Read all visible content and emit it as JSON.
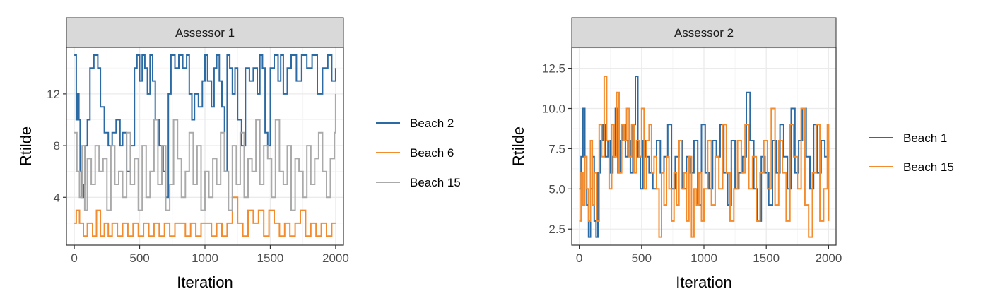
{
  "colors": {
    "blue": "#2c6aa3",
    "orange": "#f28c2e",
    "gray": "#aaaaaa",
    "strip": "#d9d9d9",
    "grid_major": "#ebebeb",
    "grid_minor": "#f5f5f5",
    "frame": "#333333"
  },
  "chart_data": [
    {
      "type": "line",
      "title": "Assessor 1",
      "xlabel": "Iteration",
      "ylabel": "Rtilde",
      "xlim": [
        -60,
        2060
      ],
      "ylim": [
        0.3,
        15.6
      ],
      "xticks": [
        0,
        500,
        1000,
        1500,
        2000
      ],
      "xtick_labels": [
        "0",
        "500",
        "1000",
        "1500",
        "2000"
      ],
      "yticks": [
        4,
        8,
        12
      ],
      "ytick_labels": [
        "4",
        "8",
        "12"
      ],
      "grid": true,
      "legend_position": "right",
      "series": [
        {
          "name": "Beach 2",
          "color": "#2c6aa3",
          "step": true,
          "x": [
            0,
            15,
            25,
            35,
            45,
            55,
            70,
            85,
            100,
            120,
            150,
            180,
            200,
            230,
            260,
            290,
            320,
            350,
            370,
            400,
            430,
            460,
            480,
            500,
            520,
            540,
            560,
            580,
            600,
            620,
            650,
            680,
            700,
            720,
            740,
            770,
            800,
            830,
            860,
            880,
            900,
            920,
            950,
            980,
            1000,
            1020,
            1050,
            1070,
            1090,
            1110,
            1130,
            1150,
            1170,
            1190,
            1210,
            1230,
            1250,
            1280,
            1310,
            1340,
            1370,
            1400,
            1420,
            1440,
            1460,
            1480,
            1500,
            1530,
            1560,
            1580,
            1600,
            1630,
            1660,
            1700,
            1740,
            1780,
            1820,
            1860,
            1900,
            1940,
            1970,
            2000
          ],
          "values": [
            15,
            10,
            12,
            10,
            6,
            4,
            5,
            8,
            10,
            14,
            15,
            14,
            11,
            9,
            8,
            9,
            10,
            8,
            9,
            6,
            8,
            14,
            15,
            13,
            15,
            14,
            12,
            15,
            13,
            10,
            8,
            6,
            4,
            12,
            15,
            14,
            15,
            14,
            15,
            12,
            10,
            12,
            11,
            13,
            15,
            13,
            11,
            14,
            15,
            13,
            11,
            6,
            15,
            14,
            12,
            14,
            10,
            8,
            14,
            13,
            14,
            12,
            15,
            14,
            9,
            8,
            14,
            15,
            13,
            15,
            12,
            14,
            15,
            13,
            15,
            14,
            15,
            12,
            14,
            15,
            13,
            14
          ]
        },
        {
          "name": "Beach 6",
          "color": "#f28c2e",
          "step": true,
          "x": [
            0,
            15,
            40,
            70,
            100,
            140,
            170,
            200,
            230,
            260,
            290,
            330,
            370,
            410,
            450,
            490,
            530,
            570,
            610,
            650,
            690,
            730,
            770,
            810,
            850,
            890,
            930,
            970,
            1010,
            1050,
            1090,
            1130,
            1170,
            1210,
            1250,
            1290,
            1330,
            1370,
            1410,
            1450,
            1490,
            1530,
            1570,
            1610,
            1650,
            1690,
            1730,
            1770,
            1810,
            1850,
            1890,
            1930,
            1970,
            2000
          ],
          "values": [
            2,
            3,
            2,
            1,
            2,
            1,
            3,
            1,
            2,
            1,
            2,
            1,
            2,
            1,
            2,
            1,
            2,
            1,
            2,
            1,
            2,
            1,
            2,
            2,
            1,
            2,
            1,
            2,
            2,
            1,
            2,
            1,
            2,
            4,
            2,
            1,
            3,
            2,
            3,
            1,
            3,
            2,
            1,
            2,
            1,
            2,
            3,
            1,
            2,
            1,
            2,
            1,
            2,
            2
          ]
        },
        {
          "name": "Beach 15",
          "color": "#aaaaaa",
          "step": true,
          "x": [
            0,
            20,
            40,
            60,
            80,
            100,
            130,
            160,
            190,
            220,
            250,
            280,
            310,
            340,
            370,
            400,
            430,
            460,
            490,
            520,
            550,
            580,
            610,
            640,
            670,
            700,
            730,
            760,
            790,
            820,
            850,
            880,
            910,
            940,
            970,
            1000,
            1030,
            1060,
            1090,
            1120,
            1150,
            1180,
            1210,
            1240,
            1270,
            1300,
            1330,
            1360,
            1390,
            1420,
            1450,
            1480,
            1510,
            1540,
            1570,
            1600,
            1630,
            1660,
            1690,
            1720,
            1750,
            1780,
            1810,
            1840,
            1870,
            1900,
            1930,
            1960,
            1990,
            2000
          ],
          "values": [
            9,
            6,
            4,
            8,
            3,
            7,
            5,
            8,
            6,
            7,
            3,
            8,
            5,
            6,
            4,
            9,
            5,
            7,
            3,
            8,
            4,
            6,
            10,
            5,
            8,
            3,
            5,
            10,
            7,
            4,
            6,
            9,
            5,
            8,
            3,
            6,
            4,
            7,
            5,
            9,
            6,
            3,
            8,
            5,
            9,
            4,
            7,
            6,
            10,
            5,
            8,
            7,
            4,
            10,
            6,
            5,
            8,
            3,
            7,
            6,
            4,
            8,
            5,
            7,
            9,
            6,
            4,
            7,
            9,
            12
          ]
        }
      ]
    },
    {
      "type": "line",
      "title": "Assessor 2",
      "xlabel": "Iteration",
      "ylabel": "Rtilde",
      "xlim": [
        -60,
        2060
      ],
      "ylim": [
        1.5,
        13.8
      ],
      "xticks": [
        0,
        500,
        1000,
        1500,
        2000
      ],
      "xtick_labels": [
        "0",
        "500",
        "1000",
        "1500",
        "2000"
      ],
      "yticks": [
        2.5,
        5.0,
        7.5,
        10.0,
        12.5
      ],
      "ytick_labels": [
        "2.5",
        "5.0",
        "7.5",
        "10.0",
        "12.5"
      ],
      "grid": true,
      "legend_position": "right",
      "series": [
        {
          "name": "Beach 1",
          "color": "#2c6aa3",
          "step": true,
          "x": [
            0,
            15,
            30,
            45,
            60,
            75,
            90,
            105,
            120,
            135,
            150,
            170,
            190,
            210,
            230,
            250,
            270,
            290,
            310,
            330,
            350,
            370,
            390,
            410,
            430,
            450,
            470,
            490,
            510,
            530,
            560,
            590,
            620,
            650,
            680,
            710,
            740,
            770,
            800,
            830,
            860,
            890,
            920,
            950,
            980,
            1010,
            1040,
            1070,
            1100,
            1130,
            1160,
            1190,
            1220,
            1250,
            1280,
            1310,
            1340,
            1370,
            1400,
            1430,
            1460,
            1490,
            1520,
            1550,
            1580,
            1610,
            1640,
            1670,
            1700,
            1730,
            1760,
            1790,
            1820,
            1850,
            1880,
            1910,
            1940,
            1970,
            2000
          ],
          "values": [
            5,
            7,
            10,
            7,
            4,
            2,
            5,
            7,
            3,
            2,
            6,
            8,
            9,
            7,
            8,
            6,
            7,
            10,
            6,
            8,
            9,
            7,
            8,
            6,
            9,
            12,
            7,
            5,
            8,
            7,
            6,
            5,
            8,
            6,
            7,
            9,
            5,
            7,
            8,
            5,
            7,
            6,
            8,
            4,
            9,
            6,
            5,
            8,
            7,
            9,
            6,
            4,
            8,
            5,
            6,
            7,
            11,
            8,
            5,
            3,
            7,
            6,
            4,
            8,
            6,
            9,
            7,
            5,
            10,
            6,
            8,
            10,
            7,
            5,
            9,
            6,
            8,
            7,
            8
          ]
        },
        {
          "name": "Beach 15",
          "color": "#f28c2e",
          "step": true,
          "x": [
            0,
            15,
            30,
            45,
            60,
            75,
            90,
            105,
            120,
            140,
            160,
            180,
            200,
            220,
            240,
            260,
            280,
            300,
            320,
            340,
            360,
            380,
            400,
            420,
            440,
            460,
            480,
            500,
            520,
            540,
            560,
            580,
            600,
            620,
            640,
            660,
            680,
            700,
            720,
            740,
            760,
            780,
            800,
            820,
            840,
            860,
            880,
            900,
            920,
            940,
            960,
            980,
            1000,
            1030,
            1060,
            1090,
            1120,
            1150,
            1180,
            1210,
            1240,
            1270,
            1300,
            1330,
            1360,
            1390,
            1420,
            1450,
            1480,
            1510,
            1540,
            1570,
            1600,
            1630,
            1660,
            1690,
            1720,
            1750,
            1780,
            1810,
            1840,
            1870,
            1900,
            1930,
            1960,
            1990,
            2000
          ],
          "values": [
            3,
            6,
            4,
            7,
            5,
            3,
            8,
            4,
            6,
            3,
            9,
            7,
            12,
            8,
            5,
            9,
            7,
            11,
            6,
            9,
            8,
            10,
            7,
            9,
            6,
            8,
            7,
            10,
            5,
            8,
            9,
            6,
            7,
            5,
            2,
            6,
            4,
            7,
            5,
            3,
            6,
            4,
            8,
            5,
            6,
            3,
            7,
            2,
            5,
            4,
            6,
            3,
            5,
            8,
            4,
            7,
            5,
            9,
            6,
            3,
            5,
            8,
            6,
            9,
            5,
            7,
            3,
            6,
            8,
            5,
            10,
            4,
            8,
            6,
            3,
            9,
            7,
            5,
            10,
            4,
            2,
            6,
            9,
            3,
            5,
            9,
            3
          ]
        }
      ]
    }
  ]
}
